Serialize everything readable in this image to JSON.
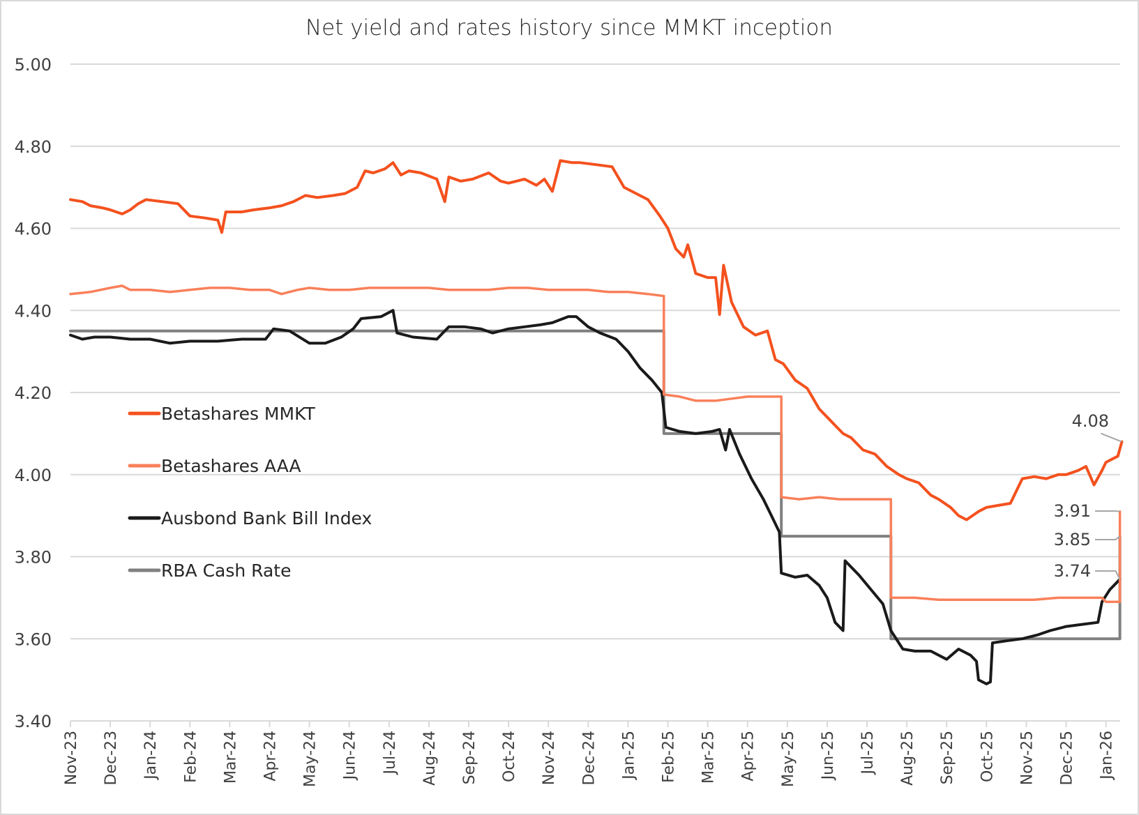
{
  "chart_data": {
    "type": "line",
    "title": "Net yield and rates history since MMKT inception",
    "xlabel": "",
    "ylabel": "",
    "ylim": [
      3.4,
      5.0
    ],
    "yticks": [
      "5.00",
      "4.80",
      "4.60",
      "4.40",
      "4.20",
      "4.00",
      "3.80",
      "3.60",
      "3.40"
    ],
    "ytick_values": [
      5.0,
      4.8,
      4.6,
      4.4,
      4.2,
      4.0,
      3.8,
      3.6,
      3.4
    ],
    "grid": true,
    "legend_position": "left-middle",
    "x_unit": "months since Nov-23",
    "xlim": [
      0,
      26.4
    ],
    "categories": [
      "Nov-23",
      "Dec-23",
      "Jan-24",
      "Feb-24",
      "Mar-24",
      "Apr-24",
      "May-24",
      "Jun-24",
      "Jul-24",
      "Aug-24",
      "Sep-24",
      "Oct-24",
      "Nov-24",
      "Dec-24",
      "Jan-25",
      "Feb-25",
      "Mar-25",
      "Apr-25",
      "May-25",
      "Jun-25",
      "Jul-25",
      "Aug-25",
      "Sep-25",
      "Oct-25",
      "Nov-25",
      "Dec-25",
      "Jan-26"
    ],
    "series": [
      {
        "name": "Betashares MMKT",
        "color": "#f4511e",
        "points": [
          [
            0,
            4.67
          ],
          [
            0.3,
            4.665
          ],
          [
            0.5,
            4.655
          ],
          [
            0.8,
            4.65
          ],
          [
            1.0,
            4.645
          ],
          [
            1.3,
            4.635
          ],
          [
            1.5,
            4.645
          ],
          [
            1.7,
            4.66
          ],
          [
            1.9,
            4.67
          ],
          [
            2.3,
            4.665
          ],
          [
            2.7,
            4.66
          ],
          [
            3.0,
            4.63
          ],
          [
            3.4,
            4.625
          ],
          [
            3.7,
            4.62
          ],
          [
            3.8,
            4.59
          ],
          [
            3.9,
            4.64
          ],
          [
            4.3,
            4.64
          ],
          [
            4.6,
            4.645
          ],
          [
            5.0,
            4.65
          ],
          [
            5.3,
            4.655
          ],
          [
            5.6,
            4.665
          ],
          [
            5.9,
            4.68
          ],
          [
            6.2,
            4.675
          ],
          [
            6.6,
            4.68
          ],
          [
            6.9,
            4.685
          ],
          [
            7.2,
            4.7
          ],
          [
            7.4,
            4.74
          ],
          [
            7.6,
            4.735
          ],
          [
            7.9,
            4.745
          ],
          [
            8.1,
            4.76
          ],
          [
            8.3,
            4.73
          ],
          [
            8.5,
            4.74
          ],
          [
            8.8,
            4.735
          ],
          [
            9.2,
            4.72
          ],
          [
            9.4,
            4.665
          ],
          [
            9.5,
            4.725
          ],
          [
            9.8,
            4.715
          ],
          [
            10.1,
            4.72
          ],
          [
            10.5,
            4.735
          ],
          [
            10.8,
            4.715
          ],
          [
            11.0,
            4.71
          ],
          [
            11.4,
            4.72
          ],
          [
            11.7,
            4.705
          ],
          [
            11.9,
            4.72
          ],
          [
            12.1,
            4.69
          ],
          [
            12.3,
            4.765
          ],
          [
            12.6,
            4.76
          ],
          [
            12.8,
            4.76
          ],
          [
            13.2,
            4.755
          ],
          [
            13.6,
            4.75
          ],
          [
            13.9,
            4.7
          ],
          [
            14.2,
            4.685
          ],
          [
            14.5,
            4.67
          ],
          [
            14.8,
            4.63
          ],
          [
            15.0,
            4.6
          ],
          [
            15.2,
            4.55
          ],
          [
            15.4,
            4.53
          ],
          [
            15.5,
            4.56
          ],
          [
            15.7,
            4.49
          ],
          [
            16.0,
            4.48
          ],
          [
            16.2,
            4.48
          ],
          [
            16.3,
            4.39
          ],
          [
            16.4,
            4.51
          ],
          [
            16.6,
            4.42
          ],
          [
            16.9,
            4.36
          ],
          [
            17.2,
            4.34
          ],
          [
            17.5,
            4.35
          ],
          [
            17.7,
            4.28
          ],
          [
            17.9,
            4.27
          ],
          [
            18.2,
            4.23
          ],
          [
            18.5,
            4.21
          ],
          [
            18.8,
            4.16
          ],
          [
            19.0,
            4.14
          ],
          [
            19.2,
            4.12
          ],
          [
            19.4,
            4.1
          ],
          [
            19.6,
            4.09
          ],
          [
            19.9,
            4.06
          ],
          [
            20.2,
            4.05
          ],
          [
            20.5,
            4.02
          ],
          [
            20.8,
            4.0
          ],
          [
            21.0,
            3.99
          ],
          [
            21.3,
            3.98
          ],
          [
            21.6,
            3.95
          ],
          [
            21.8,
            3.94
          ],
          [
            22.1,
            3.92
          ],
          [
            22.3,
            3.9
          ],
          [
            22.5,
            3.89
          ],
          [
            22.8,
            3.91
          ],
          [
            23.0,
            3.92
          ],
          [
            23.3,
            3.925
          ],
          [
            23.6,
            3.93
          ],
          [
            23.9,
            3.99
          ],
          [
            24.2,
            3.995
          ],
          [
            24.5,
            3.99
          ],
          [
            24.8,
            4.0
          ],
          [
            25.0,
            4.0
          ],
          [
            25.3,
            4.01
          ],
          [
            25.5,
            4.02
          ],
          [
            25.7,
            3.975
          ],
          [
            25.9,
            4.01
          ],
          [
            26.0,
            4.03
          ],
          [
            26.2,
            4.04
          ],
          [
            26.3,
            4.045
          ],
          [
            26.4,
            4.08
          ]
        ]
      },
      {
        "name": "Betashares AAA",
        "color": "#f9805a",
        "points": [
          [
            0,
            4.44
          ],
          [
            0.5,
            4.445
          ],
          [
            1.0,
            4.455
          ],
          [
            1.3,
            4.46
          ],
          [
            1.5,
            4.45
          ],
          [
            2.0,
            4.45
          ],
          [
            2.5,
            4.445
          ],
          [
            3.0,
            4.45
          ],
          [
            3.5,
            4.455
          ],
          [
            4.0,
            4.455
          ],
          [
            4.5,
            4.45
          ],
          [
            5.0,
            4.45
          ],
          [
            5.3,
            4.44
          ],
          [
            5.7,
            4.45
          ],
          [
            6.0,
            4.455
          ],
          [
            6.5,
            4.45
          ],
          [
            7.0,
            4.45
          ],
          [
            7.5,
            4.455
          ],
          [
            8.0,
            4.455
          ],
          [
            8.5,
            4.455
          ],
          [
            9.0,
            4.455
          ],
          [
            9.5,
            4.45
          ],
          [
            10.0,
            4.45
          ],
          [
            10.5,
            4.45
          ],
          [
            11.0,
            4.455
          ],
          [
            11.5,
            4.455
          ],
          [
            12.0,
            4.45
          ],
          [
            12.5,
            4.45
          ],
          [
            13.0,
            4.45
          ],
          [
            13.5,
            4.445
          ],
          [
            14.0,
            4.445
          ],
          [
            14.5,
            4.44
          ],
          [
            14.9,
            4.435
          ],
          [
            14.9,
            4.195
          ],
          [
            15.3,
            4.19
          ],
          [
            15.7,
            4.18
          ],
          [
            16.2,
            4.18
          ],
          [
            16.6,
            4.185
          ],
          [
            17.0,
            4.19
          ],
          [
            17.5,
            4.19
          ],
          [
            17.85,
            4.19
          ],
          [
            17.85,
            3.945
          ],
          [
            18.3,
            3.94
          ],
          [
            18.8,
            3.945
          ],
          [
            19.3,
            3.94
          ],
          [
            19.8,
            3.94
          ],
          [
            20.2,
            3.94
          ],
          [
            20.6,
            3.94
          ],
          [
            20.6,
            3.7
          ],
          [
            21.2,
            3.7
          ],
          [
            21.8,
            3.695
          ],
          [
            22.4,
            3.695
          ],
          [
            23.0,
            3.695
          ],
          [
            23.6,
            3.695
          ],
          [
            24.2,
            3.695
          ],
          [
            24.8,
            3.7
          ],
          [
            25.4,
            3.7
          ],
          [
            25.9,
            3.7
          ],
          [
            26.0,
            3.69
          ],
          [
            26.35,
            3.69
          ],
          [
            26.35,
            3.91
          ]
        ]
      },
      {
        "name": "Ausbond Bank Bill Index",
        "color": "#1a1a1a",
        "points": [
          [
            0,
            4.34
          ],
          [
            0.3,
            4.33
          ],
          [
            0.6,
            4.335
          ],
          [
            1.0,
            4.335
          ],
          [
            1.5,
            4.33
          ],
          [
            2.0,
            4.33
          ],
          [
            2.5,
            4.32
          ],
          [
            3.0,
            4.325
          ],
          [
            3.7,
            4.325
          ],
          [
            4.3,
            4.33
          ],
          [
            4.9,
            4.33
          ],
          [
            5.1,
            4.355
          ],
          [
            5.5,
            4.35
          ],
          [
            6.0,
            4.32
          ],
          [
            6.4,
            4.32
          ],
          [
            6.8,
            4.335
          ],
          [
            7.1,
            4.355
          ],
          [
            7.3,
            4.38
          ],
          [
            7.8,
            4.385
          ],
          [
            8.1,
            4.4
          ],
          [
            8.2,
            4.345
          ],
          [
            8.6,
            4.335
          ],
          [
            9.2,
            4.33
          ],
          [
            9.5,
            4.36
          ],
          [
            9.9,
            4.36
          ],
          [
            10.3,
            4.355
          ],
          [
            10.6,
            4.345
          ],
          [
            11.0,
            4.355
          ],
          [
            11.4,
            4.36
          ],
          [
            11.8,
            4.365
          ],
          [
            12.1,
            4.37
          ],
          [
            12.5,
            4.385
          ],
          [
            12.7,
            4.385
          ],
          [
            13.0,
            4.36
          ],
          [
            13.3,
            4.345
          ],
          [
            13.7,
            4.33
          ],
          [
            14.0,
            4.3
          ],
          [
            14.3,
            4.26
          ],
          [
            14.6,
            4.23
          ],
          [
            14.85,
            4.2
          ],
          [
            14.95,
            4.115
          ],
          [
            15.3,
            4.105
          ],
          [
            15.7,
            4.1
          ],
          [
            16.1,
            4.105
          ],
          [
            16.3,
            4.11
          ],
          [
            16.45,
            4.06
          ],
          [
            16.55,
            4.11
          ],
          [
            16.8,
            4.05
          ],
          [
            17.1,
            3.99
          ],
          [
            17.4,
            3.94
          ],
          [
            17.6,
            3.9
          ],
          [
            17.8,
            3.86
          ],
          [
            17.85,
            3.76
          ],
          [
            18.2,
            3.75
          ],
          [
            18.5,
            3.755
          ],
          [
            18.8,
            3.73
          ],
          [
            19.0,
            3.7
          ],
          [
            19.2,
            3.64
          ],
          [
            19.4,
            3.62
          ],
          [
            19.45,
            3.79
          ],
          [
            19.8,
            3.755
          ],
          [
            20.1,
            3.72
          ],
          [
            20.4,
            3.685
          ],
          [
            20.6,
            3.62
          ],
          [
            20.9,
            3.575
          ],
          [
            21.2,
            3.57
          ],
          [
            21.6,
            3.57
          ],
          [
            22.0,
            3.55
          ],
          [
            22.3,
            3.575
          ],
          [
            22.6,
            3.56
          ],
          [
            22.75,
            3.545
          ],
          [
            22.8,
            3.5
          ],
          [
            23.0,
            3.49
          ],
          [
            23.1,
            3.495
          ],
          [
            23.15,
            3.59
          ],
          [
            23.5,
            3.595
          ],
          [
            23.9,
            3.6
          ],
          [
            24.3,
            3.61
          ],
          [
            24.6,
            3.62
          ],
          [
            25.0,
            3.63
          ],
          [
            25.4,
            3.635
          ],
          [
            25.8,
            3.64
          ],
          [
            25.9,
            3.69
          ],
          [
            26.1,
            3.72
          ],
          [
            26.25,
            3.735
          ],
          [
            26.35,
            3.745
          ]
        ]
      },
      {
        "name": "RBA Cash Rate",
        "color": "#808080",
        "points": [
          [
            0,
            4.35
          ],
          [
            14.9,
            4.35
          ],
          [
            14.9,
            4.1
          ],
          [
            17.85,
            4.1
          ],
          [
            17.85,
            3.85
          ],
          [
            20.6,
            3.85
          ],
          [
            20.6,
            3.6
          ],
          [
            26.35,
            3.6
          ],
          [
            26.35,
            3.85
          ]
        ]
      }
    ],
    "data_labels": [
      {
        "series": "Betashares MMKT",
        "text": "4.08",
        "value": 4.08
      },
      {
        "series": "Betashares AAA",
        "text": "3.91",
        "value": 3.91
      },
      {
        "series": "RBA Cash Rate",
        "text": "3.85",
        "value": 3.85
      },
      {
        "series": "Ausbond Bank Bill Index",
        "text": "3.74",
        "value": 3.74
      }
    ]
  }
}
